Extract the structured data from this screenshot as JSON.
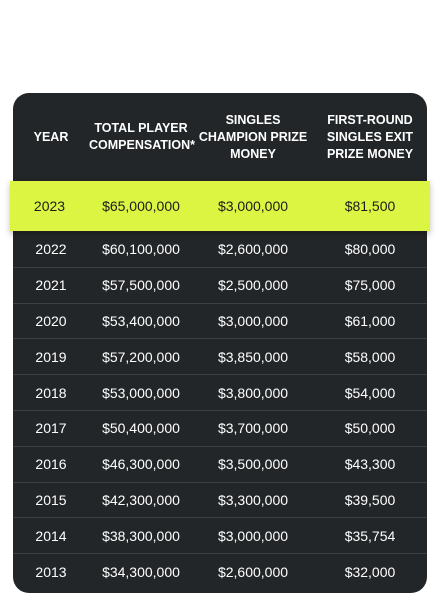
{
  "table": {
    "headers": {
      "year": "YEAR",
      "total": "TOTAL PLAYER COMPENSATION*",
      "champion": "SINGLES CHAMPION PRIZE MONEY",
      "first_round": "FIRST-ROUND SINGLES EXIT PRIZE MONEY"
    },
    "highlight": {
      "year": "2023",
      "total": "$65,000,000",
      "champion": "$3,000,000",
      "first_round": "$81,500",
      "color": "#dcf542"
    },
    "rows": [
      {
        "year": "2022",
        "total": "$60,100,000",
        "champion": "$2,600,000",
        "first_round": "$80,000"
      },
      {
        "year": "2021",
        "total": "$57,500,000",
        "champion": "$2,500,000",
        "first_round": "$75,000"
      },
      {
        "year": "2020",
        "total": "$53,400,000",
        "champion": "$3,000,000",
        "first_round": "$61,000"
      },
      {
        "year": "2019",
        "total": "$57,200,000",
        "champion": "$3,850,000",
        "first_round": "$58,000"
      },
      {
        "year": "2018",
        "total": "$53,000,000",
        "champion": "$3,800,000",
        "first_round": "$54,000"
      },
      {
        "year": "2017",
        "total": "$50,400,000",
        "champion": "$3,700,000",
        "first_round": "$50,000"
      },
      {
        "year": "2016",
        "total": "$46,300,000",
        "champion": "$3,500,000",
        "first_round": "$43,300"
      },
      {
        "year": "2015",
        "total": "$42,300,000",
        "champion": "$3,300,000",
        "first_round": "$39,500"
      },
      {
        "year": "2014",
        "total": "$38,300,000",
        "champion": "$3,000,000",
        "first_round": "$35,754"
      },
      {
        "year": "2013",
        "total": "$34,300,000",
        "champion": "$2,600,000",
        "first_round": "$32,000"
      }
    ]
  }
}
